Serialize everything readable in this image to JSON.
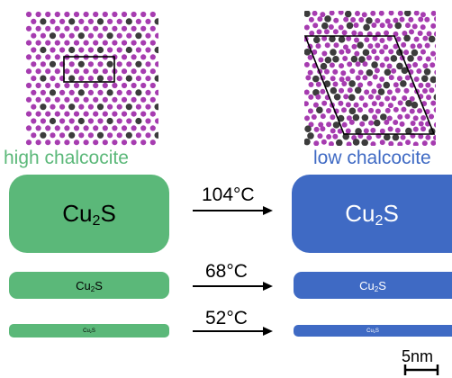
{
  "colors": {
    "high_phase": "#5bb879",
    "low_phase": "#3f6ac4",
    "copper_atom": "#a63cb0",
    "sulfur_atom": "#3c3c3c"
  },
  "phases": {
    "high": {
      "label": "high chalcocite"
    },
    "low": {
      "label": "low chalcocite"
    }
  },
  "formula": {
    "base": "Cu",
    "subscript": "2",
    "tail": "S"
  },
  "transitions": [
    {
      "temperature": "104°C"
    },
    {
      "temperature": "68°C"
    },
    {
      "temperature": "52°C"
    }
  ],
  "scale_bar": {
    "label": "5nm"
  }
}
